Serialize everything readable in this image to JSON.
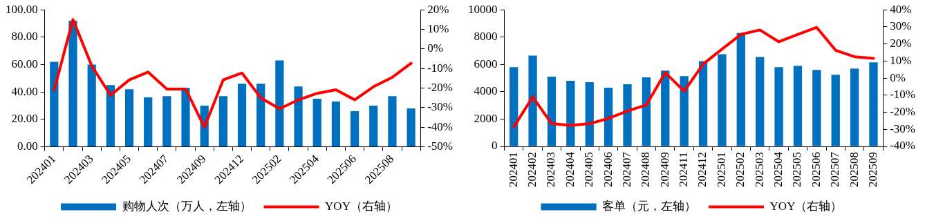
{
  "chart_data": [
    {
      "type": "bar",
      "categories": [
        "202401",
        null,
        "202403",
        null,
        "202405",
        null,
        "202407",
        null,
        "202409",
        null,
        "202412",
        null,
        "202502",
        null,
        "202504",
        null,
        "202506",
        null,
        "202508",
        null
      ],
      "series": [
        {
          "name": "购物人次（万人，左轴）",
          "color": "#0070c0",
          "values": [
            62,
            92,
            60,
            45,
            42,
            36,
            37,
            43,
            30,
            37,
            46,
            46,
            63,
            44,
            35,
            33,
            26,
            30,
            37,
            28
          ]
        },
        {
          "name": "YOY（右轴）",
          "type": "line",
          "axis": "y2",
          "color": "#ff0000",
          "values": [
            -21,
            15,
            -8.6,
            -23.7,
            -15.8,
            -11.8,
            -20.5,
            -20.5,
            -40,
            -15.8,
            -12.3,
            -25,
            -30.6,
            -26,
            -22.7,
            -20.9,
            -26,
            -19.3,
            -14.5,
            -7.3
          ]
        }
      ],
      "ylim": [
        0,
        100
      ],
      "yticks": [
        {
          "value": 0,
          "label": "0.00"
        },
        {
          "value": 20,
          "label": "20.00"
        },
        {
          "value": 40,
          "label": "40.00"
        },
        {
          "value": 60,
          "label": "60.00"
        },
        {
          "value": 80,
          "label": "80.00"
        },
        {
          "value": 100,
          "label": "100.00"
        }
      ],
      "y2lim": [
        -50,
        20
      ],
      "y2ticks": [
        {
          "value": -50,
          "label": "-50%"
        },
        {
          "value": -40,
          "label": "-40%"
        },
        {
          "value": -30,
          "label": "-30%"
        },
        {
          "value": -20,
          "label": "-20%"
        },
        {
          "value": -10,
          "label": "-10%"
        },
        {
          "value": 0,
          "label": "0%"
        },
        {
          "value": 10,
          "label": "10%"
        },
        {
          "value": 20,
          "label": "20%"
        }
      ],
      "grid": false,
      "legend": "bottom",
      "marker": "none",
      "line_style": "solid"
    },
    {
      "type": "bar",
      "categories": [
        "202401",
        "202402",
        "202403",
        "202404",
        "202405",
        "202406",
        "202407",
        "202408",
        "202409",
        "202411",
        "202412",
        "202501",
        "202502",
        "202503",
        "202504",
        "202505",
        "202506",
        "202507",
        "202508",
        "202509"
      ],
      "series": [
        {
          "name": "客单（元，左轴）",
          "color": "#0070c0",
          "values": [
            5800,
            6650,
            5100,
            4800,
            4700,
            4300,
            4550,
            5050,
            5550,
            5150,
            6250,
            6750,
            8300,
            6550,
            5800,
            5900,
            5600,
            5250,
            5700,
            6150
          ]
        },
        {
          "name": "YOY（右轴）",
          "type": "line",
          "axis": "y2",
          "color": "#ff0000",
          "values": [
            -28.6,
            -11,
            -26.7,
            -27.7,
            -26.7,
            -23.6,
            -19.3,
            -15.7,
            3.2,
            -7.7,
            8.2,
            17,
            25.6,
            28.2,
            21.3,
            25.6,
            29.7,
            16.3,
            12.5,
            11.6
          ]
        }
      ],
      "ylim": [
        0,
        10000
      ],
      "yticks": [
        0,
        2000,
        4000,
        6000,
        8000,
        10000
      ],
      "y2lim": [
        -40,
        40
      ],
      "y2ticks": [
        {
          "value": -40,
          "label": "-40%"
        },
        {
          "value": -30,
          "label": "-30%"
        },
        {
          "value": -20,
          "label": "-20%"
        },
        {
          "value": -10,
          "label": "-10%"
        },
        {
          "value": 0,
          "label": "0%"
        },
        {
          "value": 10,
          "label": "10%"
        },
        {
          "value": 20,
          "label": "20%"
        },
        {
          "value": 30,
          "label": "30%"
        },
        {
          "value": 40,
          "label": "40%"
        }
      ],
      "grid": false,
      "legend": "bottom",
      "marker": "none",
      "line_style": "solid"
    }
  ]
}
